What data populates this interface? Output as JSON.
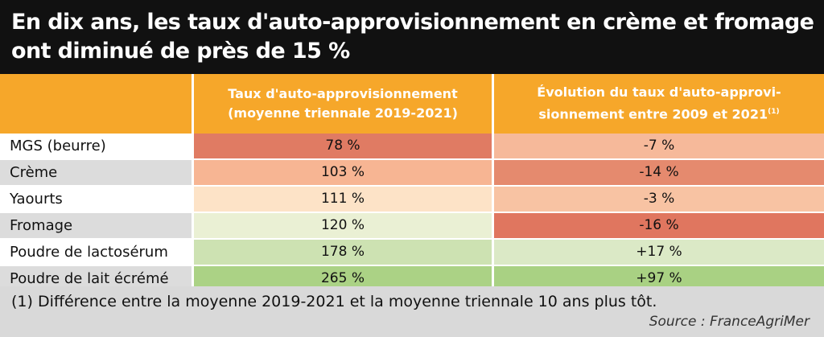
{
  "title": {
    "line1": "En dix ans, les taux d'auto-approvisionnement en crème et fromage",
    "line2": "ont diminué de près de 15 %"
  },
  "headers": {
    "col1_line1": "Taux d'auto-approvisionnement",
    "col1_line2": "(moyenne triennale 2019-2021)",
    "col2_line1": "Évolution du taux d'auto-approvi-",
    "col2_line2": "sionnement entre 2009 et 2021",
    "col2_note_marker": "(1)"
  },
  "footnote": "(1) Différence entre la moyenne 2019-2021 et la moyenne triennale 10 ans plus tôt.",
  "source": "Source : FranceAgriMer",
  "colors": {
    "header_orange": "#f6a72a",
    "title_black": "#111111"
  },
  "chart_data": {
    "type": "table",
    "columns": [
      "Taux d'auto-approvisionnement (moyenne triennale 2019-2021)",
      "Évolution du taux d'auto-approvisionnement entre 2009 et 2021"
    ],
    "rows": [
      {
        "label": "MGS (beurre)",
        "rate_text": "78 %",
        "rate": 78,
        "change_text": "-7 %",
        "change": -7,
        "rate_color": "#e07b63",
        "change_color": "#f6b99a"
      },
      {
        "label": "Crème",
        "rate_text": "103 %",
        "rate": 103,
        "change_text": "-14 %",
        "change": -14,
        "rate_color": "#f7b593",
        "change_color": "#e58a6e"
      },
      {
        "label": "Yaourts",
        "rate_text": "111 %",
        "rate": 111,
        "change_text": "-3 %",
        "change": -3,
        "rate_color": "#fde3c7",
        "change_color": "#f8c3a3"
      },
      {
        "label": "Fromage",
        "rate_text": "120 %",
        "rate": 120,
        "change_text": "-16 %",
        "change": -16,
        "rate_color": "#eaf0d4",
        "change_color": "#e0765f"
      },
      {
        "label": "Poudre de lactosérum",
        "rate_text": "178 %",
        "rate": 178,
        "change_text": "+17 %",
        "change": 17,
        "rate_color": "#cde2b2",
        "change_color": "#dbe9c6"
      },
      {
        "label": "Poudre de lait écrémé",
        "rate_text": "265 %",
        "rate": 265,
        "change_text": "+97 %",
        "change": 97,
        "rate_color": "#abd285",
        "change_color": "#a9d183"
      }
    ]
  }
}
